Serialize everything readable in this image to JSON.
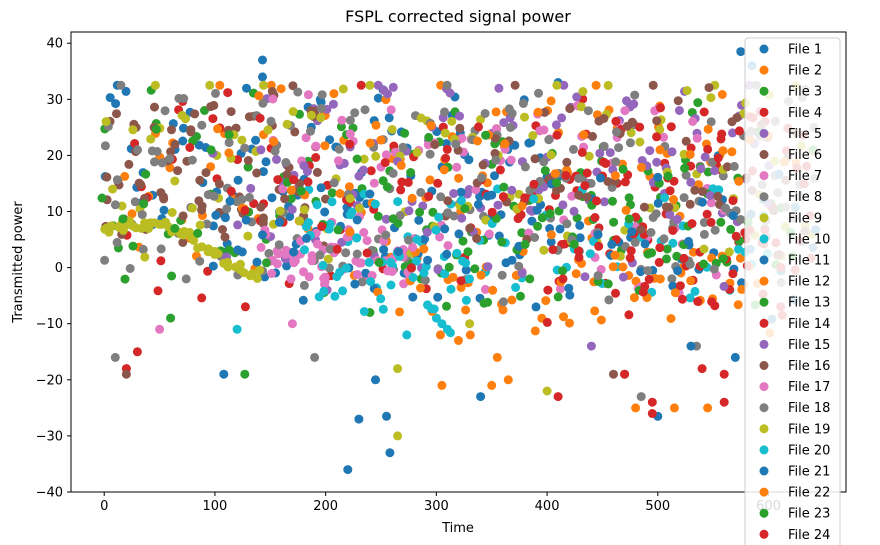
{
  "chart_data": {
    "type": "scatter",
    "title": "FSPL corrected signal power",
    "xlabel": "Time",
    "ylabel": "Transmitted power",
    "xlim": [
      -30,
      670
    ],
    "ylim": [
      -40,
      42
    ],
    "xticks": [
      "0",
      "100",
      "200",
      "300",
      "400",
      "500",
      "600"
    ],
    "yticks": [
      "−40",
      "−30",
      "−20",
      "−10",
      "0",
      "10",
      "20",
      "30",
      "40"
    ],
    "grid": false,
    "legend_position": "right",
    "series": [
      {
        "name": "File 1",
        "color": "#1f77b4",
        "x_range": [
          0,
          410
        ],
        "base": 18,
        "spread": 14,
        "wave": 10,
        "period": 60,
        "n": 90,
        "outliers": [
          [
            143,
            37
          ],
          [
            143,
            34
          ],
          [
            410,
            33
          ],
          [
            575,
            38.5
          ],
          [
            585,
            36
          ],
          [
            220,
            -36
          ],
          [
            258,
            -33
          ],
          [
            230,
            -27
          ],
          [
            255,
            -26.5
          ],
          [
            108,
            -19
          ]
        ]
      },
      {
        "name": "File 2",
        "color": "#ff7f0e",
        "x_range": [
          20,
          580
        ],
        "base": 15,
        "spread": 15,
        "wave": 12,
        "period": 50,
        "n": 90,
        "outliers": [
          [
            305,
            -21
          ],
          [
            480,
            -25
          ],
          [
            515,
            -25
          ],
          [
            545,
            -25
          ],
          [
            350,
            -21
          ],
          [
            320,
            -13
          ]
        ]
      },
      {
        "name": "File 3",
        "color": "#2ca02c",
        "x_range": [
          0,
          560
        ],
        "base": 14,
        "spread": 16,
        "wave": 11,
        "period": 45,
        "n": 80,
        "outliers": [
          [
            127,
            -19
          ],
          [
            60,
            -9
          ],
          [
            240,
            -8
          ]
        ]
      },
      {
        "name": "File 4",
        "color": "#d62728",
        "x_range": [
          20,
          610
        ],
        "base": 12,
        "spread": 18,
        "wave": 12,
        "period": 40,
        "n": 90,
        "outliers": [
          [
            30,
            -15
          ],
          [
            20,
            -18
          ],
          [
            410,
            -23
          ],
          [
            495,
            -24
          ],
          [
            560,
            -19
          ],
          [
            470,
            -19
          ]
        ]
      },
      {
        "name": "File 5",
        "color": "#9467bd",
        "x_range": [
          150,
          600
        ],
        "base": 22,
        "spread": 10,
        "wave": 9,
        "period": 55,
        "n": 80,
        "outliers": [
          [
            440,
            -14
          ]
        ]
      },
      {
        "name": "File 6",
        "color": "#8c564b",
        "x_range": [
          0,
          200
        ],
        "base": 18,
        "spread": 10,
        "wave": 10,
        "period": 18,
        "n": 80,
        "outliers": [
          [
            20,
            -19
          ],
          [
            460,
            -19
          ]
        ]
      },
      {
        "name": "File 7",
        "color": "#e377c2",
        "x_range": [
          150,
          560
        ],
        "base": 14,
        "spread": 14,
        "wave": 12,
        "period": 35,
        "n": 80,
        "outliers": [
          [
            50,
            -11
          ],
          [
            170,
            -10
          ]
        ]
      },
      {
        "name": "File 8",
        "color": "#7f7f7f",
        "x_range": [
          0,
          640
        ],
        "base": 16,
        "spread": 14,
        "wave": 12,
        "period": 14,
        "n": 110,
        "outliers": [
          [
            10,
            -16
          ],
          [
            190,
            -16
          ],
          [
            485,
            -23
          ],
          [
            535,
            -14
          ]
        ]
      },
      {
        "name": "File 9",
        "color": "#bcbd22",
        "x_range": [
          0,
          640
        ],
        "base": 18,
        "spread": 10,
        "wave": 12,
        "period": 24,
        "n": 110,
        "outliers": [
          [
            265,
            -30
          ],
          [
            400,
            -22
          ],
          [
            265,
            -18
          ],
          [
            330,
            -10
          ]
        ]
      },
      {
        "name": "File 10",
        "color": "#17becf",
        "x_range": [
          180,
          600
        ],
        "base": 4,
        "spread": 12,
        "wave": 6,
        "period": 40,
        "n": 60,
        "outliers": [
          [
            120,
            -11
          ],
          [
            300,
            -9
          ],
          [
            305,
            -10
          ]
        ]
      },
      {
        "name": "File 11",
        "color": "#1f77b4",
        "x_range": [
          100,
          640
        ],
        "base": 2,
        "spread": 14,
        "wave": 6,
        "period": 30,
        "n": 60,
        "outliers": [
          [
            340,
            -23
          ],
          [
            500,
            -26.5
          ],
          [
            570,
            -16
          ]
        ]
      },
      {
        "name": "File 12",
        "color": "#ff7f0e",
        "x_range": [
          250,
          600
        ],
        "base": -4,
        "spread": 10,
        "wave": 5,
        "period": 30,
        "n": 60,
        "outliers": [
          [
            365,
            -20
          ],
          [
            355,
            -16
          ]
        ]
      },
      {
        "name": "File 13",
        "color": "#2ca02c",
        "x_range": [
          250,
          620
        ],
        "base": 6,
        "spread": 12,
        "wave": 8,
        "period": 35,
        "n": 50,
        "outliers": []
      },
      {
        "name": "File 14",
        "color": "#d62728",
        "x_range": [
          400,
          640
        ],
        "base": 8,
        "spread": 16,
        "wave": 10,
        "period": 15,
        "n": 70,
        "outliers": [
          [
            495,
            -26
          ],
          [
            470,
            -19
          ]
        ]
      },
      {
        "name": "File 15",
        "color": "#9467bd",
        "x_range": [
          100,
          600
        ],
        "base": 10,
        "spread": 14,
        "wave": 8,
        "period": 45,
        "n": 50,
        "outliers": []
      },
      {
        "name": "File 16",
        "color": "#8c564b",
        "x_range": [
          300,
          630
        ],
        "base": 18,
        "spread": 12,
        "wave": 10,
        "period": 25,
        "n": 60,
        "outliers": []
      },
      {
        "name": "File 17",
        "color": "#e377c2",
        "x_range": [
          140,
          280
        ],
        "base": 2,
        "spread": 5,
        "wave": 3,
        "period": 15,
        "n": 60,
        "outliers": []
      },
      {
        "name": "File 18",
        "color": "#7f7f7f",
        "x_range": [
          0,
          640
        ],
        "base": 12,
        "spread": 12,
        "wave": 14,
        "period": 12,
        "n": 90,
        "outliers": []
      },
      {
        "name": "File 19",
        "color": "#bcbd22",
        "x_range": [
          0,
          140
        ],
        "base": 6,
        "spread": 2,
        "wave": 1.5,
        "period": 30,
        "n": 50,
        "trend": -0.03,
        "outliers": []
      },
      {
        "name": "File 20",
        "color": "#17becf",
        "x_range": [
          180,
          330
        ],
        "base": 0,
        "spread": 12,
        "wave": 8,
        "period": 20,
        "n": 40,
        "outliers": [
          [
            310,
            -11
          ]
        ]
      },
      {
        "name": "File 21",
        "color": "#1f77b4",
        "x_range": [
          100,
          640
        ],
        "base": 6,
        "spread": 18,
        "wave": 6,
        "period": 50,
        "n": 40,
        "outliers": [
          [
            245,
            -20
          ],
          [
            530,
            -14
          ]
        ]
      },
      {
        "name": "File 22",
        "color": "#ff7f0e",
        "x_range": [
          100,
          640
        ],
        "base": 20,
        "spread": 12,
        "wave": 8,
        "period": 50,
        "n": 40,
        "outliers": []
      },
      {
        "name": "File 23",
        "color": "#2ca02c",
        "x_range": [
          0,
          640
        ],
        "base": 10,
        "spread": 18,
        "wave": 8,
        "period": 60,
        "n": 40,
        "outliers": []
      },
      {
        "name": "File 24",
        "color": "#d62728",
        "x_range": [
          100,
          640
        ],
        "base": 12,
        "spread": 20,
        "wave": 8,
        "period": 40,
        "n": 40,
        "outliers": [
          [
            560,
            -24
          ],
          [
            540,
            -18
          ]
        ]
      }
    ]
  }
}
